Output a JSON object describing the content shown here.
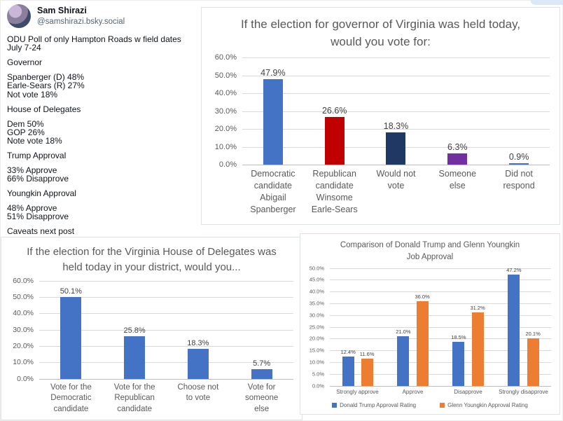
{
  "post": {
    "author_name": "Sam Shirazi",
    "author_handle": "@samshirazi.bsky.social",
    "avatar": "profile-photo",
    "paragraphs": [
      [
        "ODU Poll of only Hampton Roads w field dates July 7-24"
      ],
      [
        "Governor"
      ],
      [
        "Spanberger (D) 48%",
        "Earle-Sears (R) 27%",
        "Not vote 18%"
      ],
      [
        "House of Delegates"
      ],
      [
        "Dem 50%",
        "GOP 26%",
        "Note vote 18%"
      ],
      [
        "Trump Approval"
      ],
      [
        "33% Approve",
        "66% Disapprove"
      ],
      [
        "Youngkin Approval"
      ],
      [
        "48% Approve",
        "51% Disapprove"
      ],
      [
        "Caveats next post"
      ]
    ]
  },
  "chart_data": [
    {
      "type": "bar",
      "title": "If the election for governor of Virginia was held today, would you vote for:",
      "categories": [
        "Democratic candidate Abigail Spanberger",
        "Republican candidate Winsome Earle-Sears",
        "Would not vote",
        "Someone else",
        "Did not respond"
      ],
      "values": [
        47.9,
        26.6,
        18.3,
        6.3,
        0.9
      ],
      "value_labels": [
        "47.9%",
        "26.6%",
        "18.3%",
        "6.3%",
        "0.9%"
      ],
      "bar_colors": [
        "#4472C4",
        "#C00000",
        "#203864",
        "#7030A0",
        "#4472C4"
      ],
      "ylim": [
        0,
        60
      ],
      "ytick_step": 10,
      "grid": true,
      "legend": null
    },
    {
      "type": "bar",
      "title": "If the election for the Virginia House of Delegates was held today in your district, would you...",
      "categories": [
        "Vote for the Democratic candidate",
        "Vote for the Republican candidate",
        "Choose not to vote",
        "Vote for someone else"
      ],
      "values": [
        50.1,
        25.8,
        18.3,
        5.7
      ],
      "value_labels": [
        "50.1%",
        "25.8%",
        "18.3%",
        "5.7%"
      ],
      "bar_colors": [
        "#4472C4",
        "#4472C4",
        "#4472C4",
        "#4472C4"
      ],
      "ylim": [
        0,
        60
      ],
      "ytick_step": 10,
      "grid": true,
      "legend": null
    },
    {
      "type": "bar",
      "title": "Comparison of Donald Trump and Glenn Youngkin Job Approval",
      "categories": [
        "Strongly approve",
        "Approve",
        "Disapprove",
        "Strongly disapprove"
      ],
      "series": [
        {
          "name": "Donald Trump Approval Rating",
          "color": "#4472C4",
          "values": [
            12.4,
            21.0,
            18.5,
            47.2
          ]
        },
        {
          "name": "Glenn Youngkin Approval Rating",
          "color": "#ED7D31",
          "values": [
            11.6,
            36.0,
            31.2,
            20.1
          ]
        }
      ],
      "ylim": [
        0,
        50
      ],
      "ytick_step": 5,
      "grid": true,
      "legend_position": "bottom"
    }
  ],
  "colors": {
    "dem_blue": "#4472C4",
    "gop_red": "#C00000",
    "navy": "#203864",
    "purple": "#7030A0",
    "orange": "#ED7D31",
    "gridline": "#D9D9D9",
    "chart_text": "#595959"
  }
}
